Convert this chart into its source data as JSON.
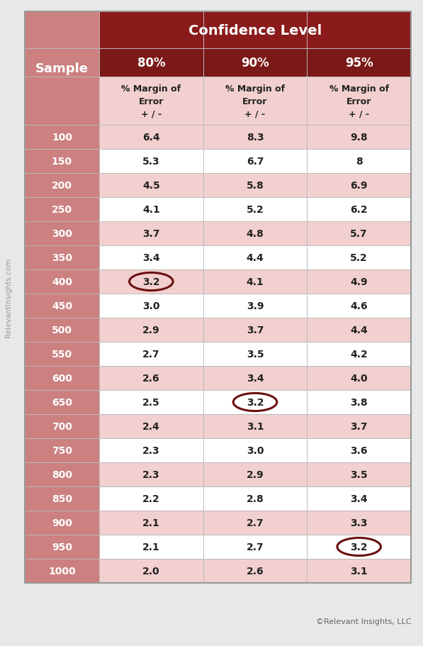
{
  "title": "Confidence Level",
  "col_headers": [
    "80%",
    "90%",
    "95%"
  ],
  "sub_header_text": "% Margin of\nError\n+ / -",
  "row_label": "Sample",
  "samples": [
    100,
    150,
    200,
    250,
    300,
    350,
    400,
    450,
    500,
    550,
    600,
    650,
    700,
    750,
    800,
    850,
    900,
    950,
    1000
  ],
  "values": [
    [
      6.4,
      8.3,
      9.8
    ],
    [
      5.3,
      6.7,
      8.0
    ],
    [
      4.5,
      5.8,
      6.9
    ],
    [
      4.1,
      5.2,
      6.2
    ],
    [
      3.7,
      4.8,
      5.7
    ],
    [
      3.4,
      4.4,
      5.2
    ],
    [
      3.2,
      4.1,
      4.9
    ],
    [
      3.0,
      3.9,
      4.6
    ],
    [
      2.9,
      3.7,
      4.4
    ],
    [
      2.7,
      3.5,
      4.2
    ],
    [
      2.6,
      3.4,
      4.0
    ],
    [
      2.5,
      3.2,
      3.8
    ],
    [
      2.4,
      3.1,
      3.7
    ],
    [
      2.3,
      3.0,
      3.6
    ],
    [
      2.3,
      2.9,
      3.5
    ],
    [
      2.2,
      2.8,
      3.4
    ],
    [
      2.1,
      2.7,
      3.3
    ],
    [
      2.1,
      2.7,
      3.2
    ],
    [
      2.0,
      2.6,
      3.1
    ]
  ],
  "val_display": [
    [
      "6.4",
      "8.3",
      "9.8"
    ],
    [
      "5.3",
      "6.7",
      "8"
    ],
    [
      "4.5",
      "5.8",
      "6.9"
    ],
    [
      "4.1",
      "5.2",
      "6.2"
    ],
    [
      "3.7",
      "4.8",
      "5.7"
    ],
    [
      "3.4",
      "4.4",
      "5.2"
    ],
    [
      "3.2",
      "4.1",
      "4.9"
    ],
    [
      "3.0",
      "3.9",
      "4.6"
    ],
    [
      "2.9",
      "3.7",
      "4.4"
    ],
    [
      "2.7",
      "3.5",
      "4.2"
    ],
    [
      "2.6",
      "3.4",
      "4.0"
    ],
    [
      "2.5",
      "3.2",
      "3.8"
    ],
    [
      "2.4",
      "3.1",
      "3.7"
    ],
    [
      "2.3",
      "3.0",
      "3.6"
    ],
    [
      "2.3",
      "2.9",
      "3.5"
    ],
    [
      "2.2",
      "2.8",
      "3.4"
    ],
    [
      "2.1",
      "2.7",
      "3.3"
    ],
    [
      "2.1",
      "2.7",
      "3.2"
    ],
    [
      "2.0",
      "2.6",
      "3.1"
    ]
  ],
  "circled_cells": [
    [
      6,
      0
    ],
    [
      11,
      1
    ],
    [
      17,
      2
    ]
  ],
  "dark_red": "#8B1A1A",
  "medium_red": "#7B1818",
  "pink_sample": "#CC8080",
  "pink_odd": "#F2D0D0",
  "white": "#FFFFFF",
  "text_dark": "#222222",
  "text_white": "#FFFFFF",
  "circle_color": "#6B1010",
  "border_color": "#BBBBBB",
  "footer_text": "©Relevant Insights, LLC",
  "watermark_text": "RelevantInsights.com",
  "bg_color": "#E8E8E8"
}
